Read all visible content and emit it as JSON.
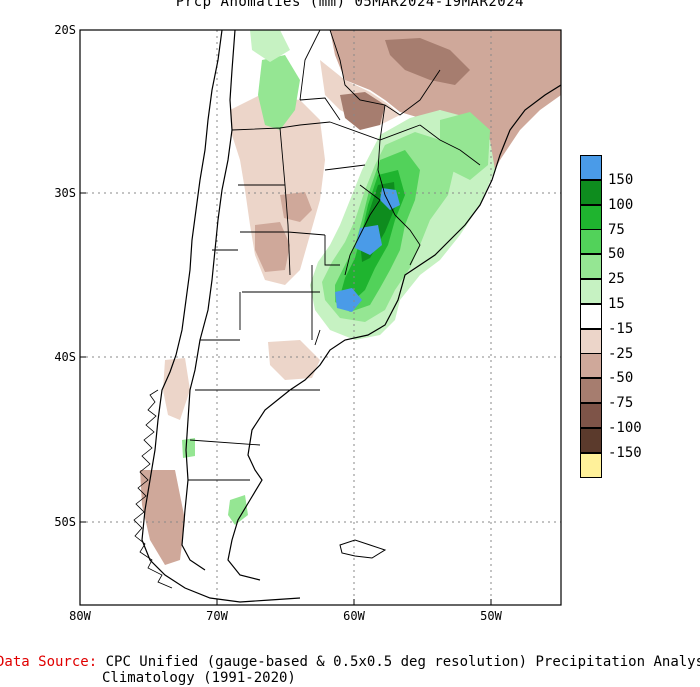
{
  "title": "Prcp Anomalies (mm) 05MAR2024-19MAR2024",
  "axes": {
    "lat_ticks": [
      "20S",
      "30S",
      "40S",
      "50S"
    ],
    "lon_ticks": [
      "80W",
      "70W",
      "60W",
      "50W"
    ]
  },
  "legend": {
    "items": [
      {
        "label": "150",
        "color": "#4a9be8"
      },
      {
        "label": "100",
        "color": "#0e8c1e"
      },
      {
        "label": "75",
        "color": "#1fb42f"
      },
      {
        "label": "50",
        "color": "#52d25a"
      },
      {
        "label": "25",
        "color": "#95e693"
      },
      {
        "label": "15",
        "color": "#c6f2c2"
      },
      {
        "label": "-15",
        "color": "#ffffff"
      },
      {
        "label": "-25",
        "color": "#ecd5c9"
      },
      {
        "label": "-50",
        "color": "#cfa89a"
      },
      {
        "label": "-75",
        "color": "#a67d6f"
      },
      {
        "label": "-100",
        "color": "#7e5448"
      },
      {
        "label": "-150",
        "color": "#5b3a2c"
      },
      {
        "label": "",
        "color": "#fff19a"
      }
    ]
  },
  "footer": {
    "source_label": "Data Source:",
    "source_text": "CPC Unified (gauge-based & 0.5x0.5 deg resolution) Precipitation Analysis",
    "line2": "Climatology (1991-2020)"
  },
  "colors": {
    "grid": "#888888",
    "border": "#000000"
  }
}
